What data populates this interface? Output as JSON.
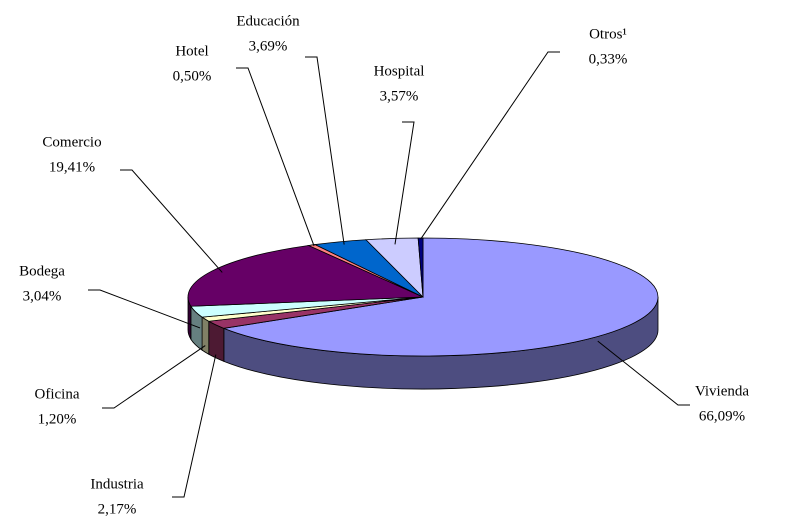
{
  "chart_data": {
    "type": "pie",
    "categories": [
      "Vivienda",
      "Industria",
      "Oficina",
      "Bodega",
      "Comercio",
      "Hotel",
      "Educación",
      "Hospital",
      "Otros¹"
    ],
    "values": [
      66.09,
      2.17,
      1.2,
      3.04,
      19.41,
      0.5,
      3.69,
      3.57,
      0.33
    ],
    "value_labels": [
      "66,09%",
      "2,17%",
      "1,20%",
      "3,04%",
      "19,41%",
      "0,50%",
      "3,69%",
      "3,57%",
      "0,33%"
    ],
    "colors": [
      "#9999ff",
      "#993366",
      "#ffffcc",
      "#ccffff",
      "#660066",
      "#ff8080",
      "#0066cc",
      "#ccccff",
      "#000080"
    ]
  }
}
